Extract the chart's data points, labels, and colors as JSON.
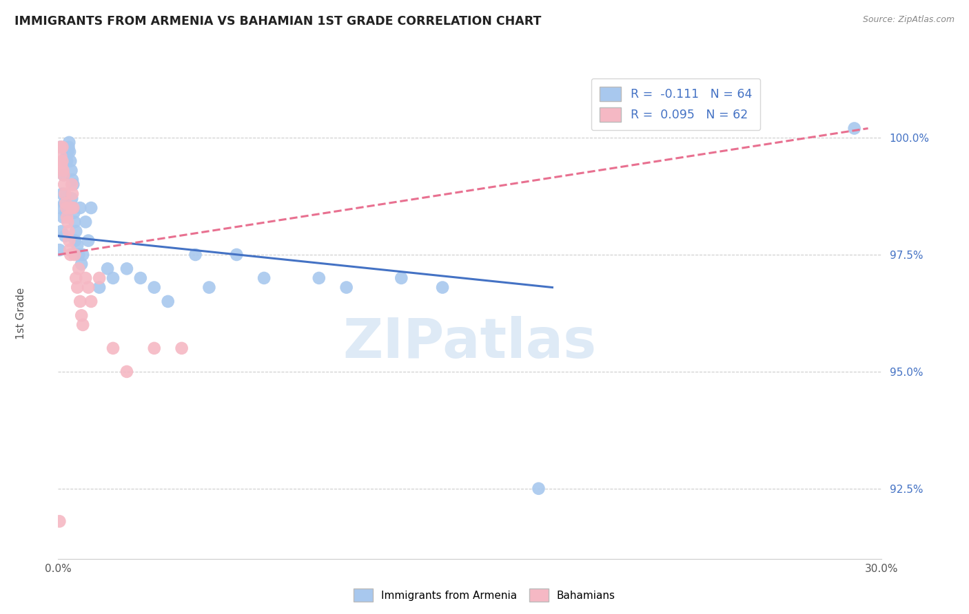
{
  "title": "IMMIGRANTS FROM ARMENIA VS BAHAMIAN 1ST GRADE CORRELATION CHART",
  "source": "Source: ZipAtlas.com",
  "ylabel": "1st Grade",
  "ytick_labels": [
    "92.5%",
    "95.0%",
    "97.5%",
    "100.0%"
  ],
  "ytick_values": [
    92.5,
    95.0,
    97.5,
    100.0
  ],
  "xlim": [
    0.0,
    30.0
  ],
  "ylim": [
    91.0,
    101.5
  ],
  "blue_color": "#A8C8EE",
  "pink_color": "#F5B8C4",
  "blue_line_color": "#4472C4",
  "pink_line_color": "#E87090",
  "watermark": "ZIPatlas",
  "blue_points_x": [
    0.05,
    0.08,
    0.1,
    0.12,
    0.15,
    0.18,
    0.2,
    0.22,
    0.25,
    0.28,
    0.3,
    0.32,
    0.35,
    0.38,
    0.4,
    0.42,
    0.45,
    0.48,
    0.5,
    0.52,
    0.55,
    0.58,
    0.6,
    0.62,
    0.65,
    0.7,
    0.75,
    0.8,
    0.85,
    0.9,
    1.0,
    1.1,
    1.2,
    1.5,
    1.8,
    2.0,
    2.5,
    3.0,
    3.5,
    4.0,
    5.0,
    5.5,
    6.5,
    7.5,
    9.5,
    10.5,
    12.5,
    14.0,
    17.5,
    29.0
  ],
  "blue_points_y": [
    97.6,
    99.8,
    98.5,
    98.0,
    98.8,
    98.3,
    99.2,
    98.6,
    97.9,
    98.4,
    99.6,
    99.5,
    99.7,
    99.8,
    99.9,
    99.7,
    99.5,
    99.3,
    98.7,
    99.1,
    99.0,
    98.4,
    98.2,
    97.8,
    98.0,
    97.7,
    97.5,
    98.5,
    97.3,
    97.5,
    98.2,
    97.8,
    98.5,
    96.8,
    97.2,
    97.0,
    97.2,
    97.0,
    96.8,
    96.5,
    97.5,
    96.8,
    97.5,
    97.0,
    97.0,
    96.8,
    97.0,
    96.8,
    92.5,
    100.2
  ],
  "pink_points_x": [
    0.05,
    0.08,
    0.1,
    0.12,
    0.15,
    0.18,
    0.2,
    0.22,
    0.25,
    0.28,
    0.3,
    0.32,
    0.35,
    0.38,
    0.4,
    0.42,
    0.45,
    0.48,
    0.5,
    0.52,
    0.55,
    0.6,
    0.65,
    0.7,
    0.75,
    0.8,
    0.85,
    0.9,
    1.0,
    1.1,
    1.2,
    1.5,
    2.0,
    2.5,
    3.5,
    4.5,
    0.15
  ],
  "pink_points_y": [
    91.8,
    99.8,
    99.6,
    99.4,
    99.5,
    99.3,
    99.2,
    99.0,
    98.8,
    98.6,
    98.5,
    98.3,
    98.2,
    98.0,
    97.8,
    97.6,
    97.5,
    98.5,
    99.0,
    98.8,
    98.5,
    97.5,
    97.0,
    96.8,
    97.2,
    96.5,
    96.2,
    96.0,
    97.0,
    96.8,
    96.5,
    97.0,
    95.5,
    95.0,
    95.5,
    95.5,
    99.8
  ],
  "blue_trend_x": [
    0.0,
    18.0
  ],
  "blue_trend_y": [
    97.9,
    96.8
  ],
  "pink_trend_x": [
    0.0,
    29.5
  ],
  "pink_trend_y": [
    97.5,
    100.2
  ]
}
